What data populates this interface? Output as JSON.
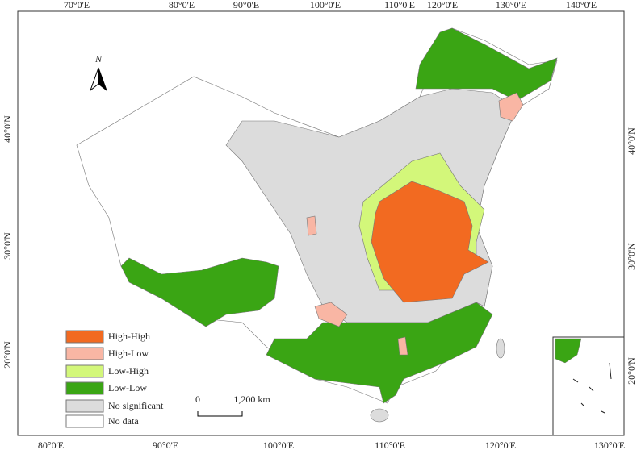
{
  "axes": {
    "top": [
      "70°0'E",
      "80°0'E",
      "90°0'E",
      "100°0'E",
      "110°0'E",
      "120°0'E",
      "130°0'E",
      "140°0'E"
    ],
    "bottom": [
      "80°0'E",
      "90°0'E",
      "100°0'E",
      "110°0'E",
      "120°0'E",
      "130°0'E"
    ],
    "left": [
      "40°0'N",
      "30°0'N",
      "20°0'N"
    ],
    "right": [
      "40°0'N",
      "30°0'N",
      "20°0'N"
    ]
  },
  "north": "N",
  "scale": {
    "start": "0",
    "end": "1,200 km"
  },
  "legend": [
    {
      "label": "High-High",
      "color": "#f26a21"
    },
    {
      "label": "High-Low",
      "color": "#f9b6a4"
    },
    {
      "label": "Low-High",
      "color": "#d3f77a"
    },
    {
      "label": "Low-Low",
      "color": "#3aa514"
    },
    {
      "label": "No significant",
      "color": "#dcdcdc"
    },
    {
      "label": "No data",
      "color": "#ffffff"
    }
  ]
}
